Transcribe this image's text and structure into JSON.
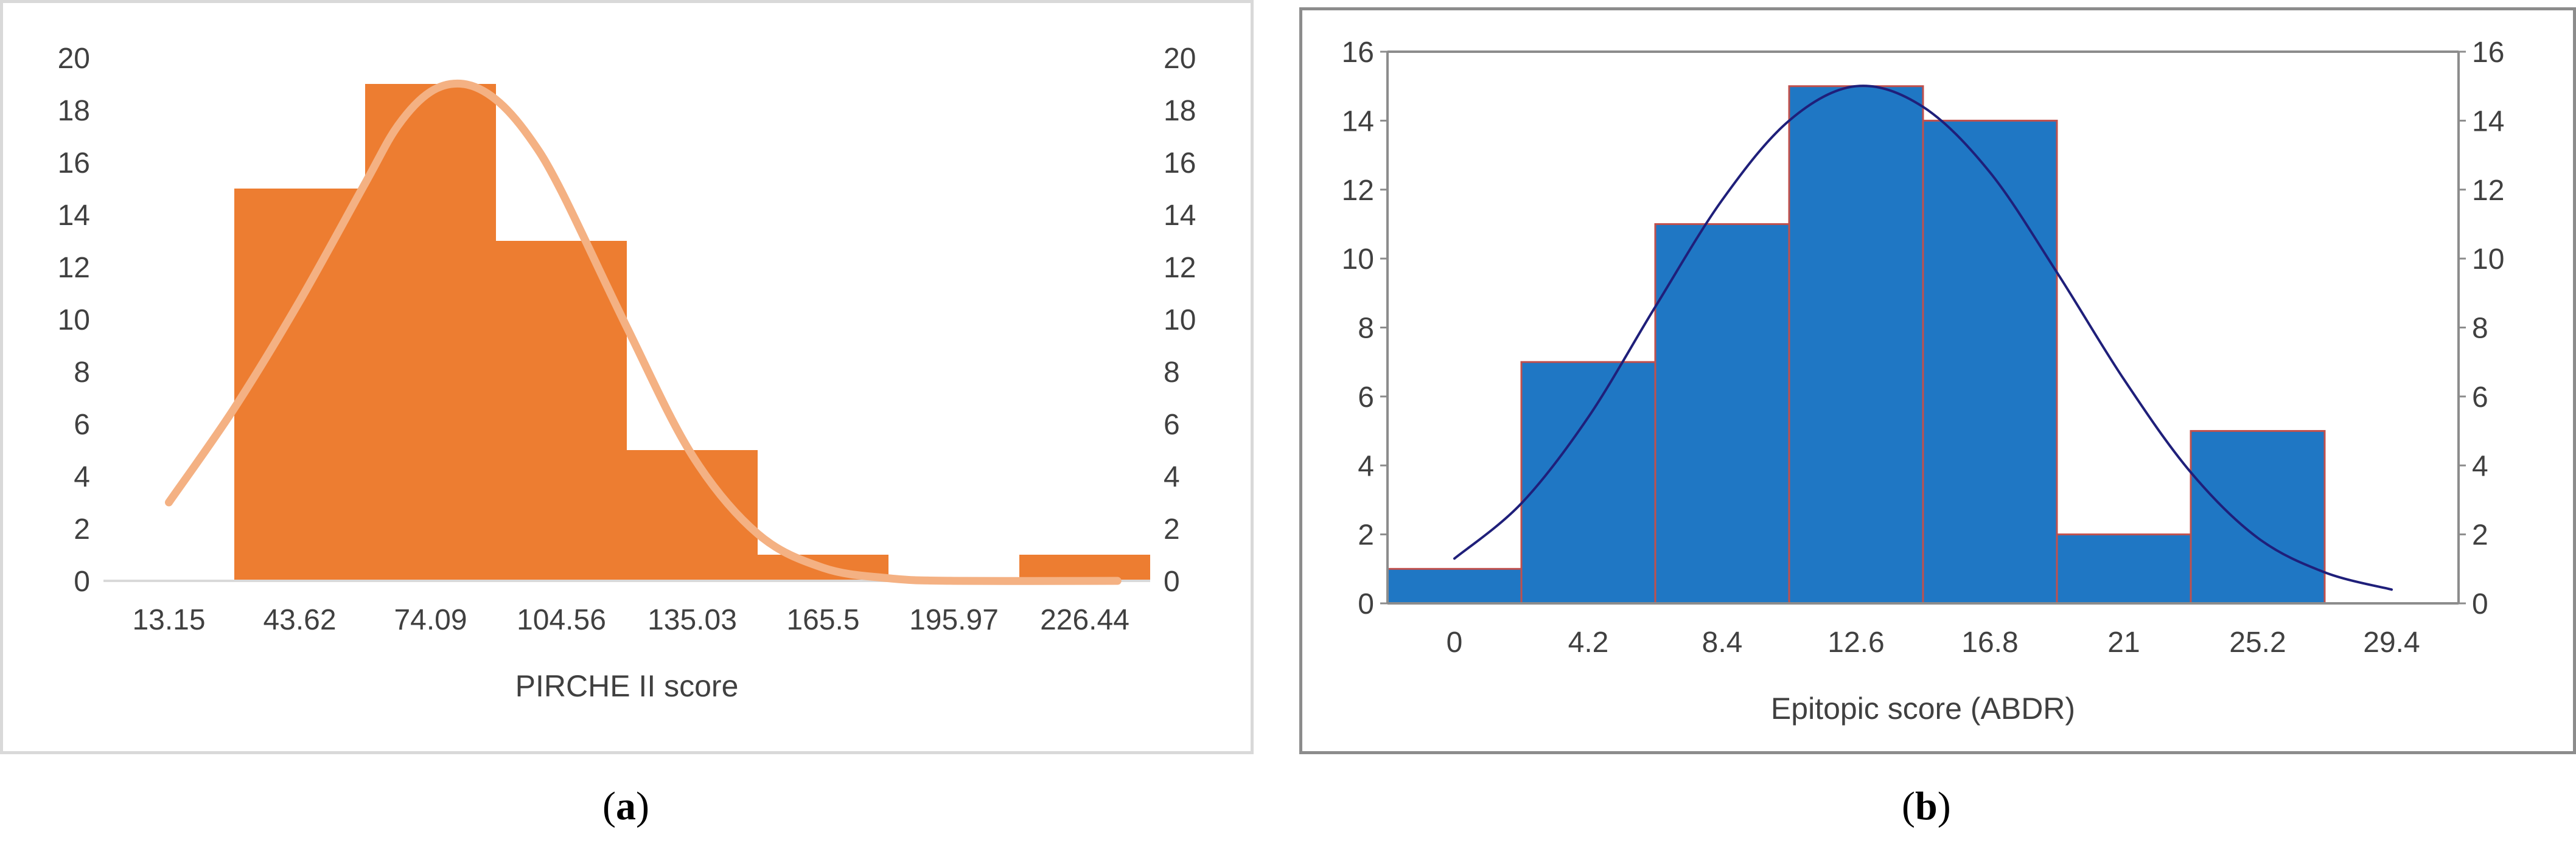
{
  "chart_data": [
    {
      "type": "bar",
      "panel": "a",
      "xlabel": "PIRCHE II score",
      "ylabel": "",
      "categories": [
        "13.15",
        "43.62",
        "74.09",
        "104.56",
        "135.03",
        "165.5",
        "195.97",
        "226.44"
      ],
      "values": [
        0,
        15,
        19,
        13,
        5,
        1,
        0,
        1
      ],
      "ylim": [
        0,
        20
      ],
      "yticks": [
        "0",
        "2",
        "4",
        "6",
        "8",
        "10",
        "12",
        "14",
        "16",
        "18",
        "20"
      ],
      "y2ticks": [
        "0",
        "2",
        "4",
        "6",
        "8",
        "10",
        "12",
        "14",
        "16",
        "18",
        "20"
      ],
      "curve": [
        [
          0,
          3.0
        ],
        [
          0.5,
          6.6
        ],
        [
          1.0,
          10.7
        ],
        [
          1.5,
          15.2
        ],
        [
          1.75,
          17.4
        ],
        [
          2.0,
          18.7
        ],
        [
          2.25,
          19.0
        ],
        [
          2.5,
          18.4
        ],
        [
          2.75,
          17.0
        ],
        [
          3.0,
          14.9
        ],
        [
          3.5,
          9.7
        ],
        [
          4.0,
          4.8
        ],
        [
          4.5,
          1.8
        ],
        [
          5.0,
          0.5
        ],
        [
          5.5,
          0.1
        ],
        [
          6.0,
          0.0
        ],
        [
          7.25,
          0.0
        ]
      ],
      "grid": false,
      "legend": "none",
      "colors": {
        "bar": "#ED7D31",
        "curve": "#F4B183",
        "axis": "#d9d9d9"
      }
    },
    {
      "type": "bar",
      "panel": "b",
      "xlabel": "Epitopic score (ABDR)",
      "ylabel": "",
      "categories": [
        "0",
        "4.2",
        "8.4",
        "12.6",
        "16.8",
        "21",
        "25.2",
        "29.4"
      ],
      "values": [
        1,
        7,
        11,
        15,
        14,
        2,
        5,
        0
      ],
      "ylim": [
        0,
        16
      ],
      "yticks": [
        "0",
        "2",
        "4",
        "6",
        "8",
        "10",
        "12",
        "14",
        "16"
      ],
      "y2ticks": [
        "0",
        "2",
        "4",
        "6",
        "8",
        "10",
        "12",
        "14",
        "16"
      ],
      "curve": [
        [
          0,
          1.3
        ],
        [
          0.5,
          2.9
        ],
        [
          1.0,
          5.4
        ],
        [
          1.5,
          8.6
        ],
        [
          2.0,
          11.7
        ],
        [
          2.5,
          14.0
        ],
        [
          3.0,
          15.0
        ],
        [
          3.5,
          14.4
        ],
        [
          4.0,
          12.5
        ],
        [
          4.5,
          9.6
        ],
        [
          5.0,
          6.5
        ],
        [
          5.5,
          3.8
        ],
        [
          6.0,
          1.9
        ],
        [
          6.5,
          0.9
        ],
        [
          7.0,
          0.4
        ]
      ],
      "grid": false,
      "legend": "none",
      "colors": {
        "bar": "#1F77C4",
        "bar_edge": "#C0504D",
        "curve": "#1F1F7A",
        "axis": "#8c8c8c"
      }
    }
  ],
  "captions": {
    "a": "a",
    "b": "b"
  }
}
